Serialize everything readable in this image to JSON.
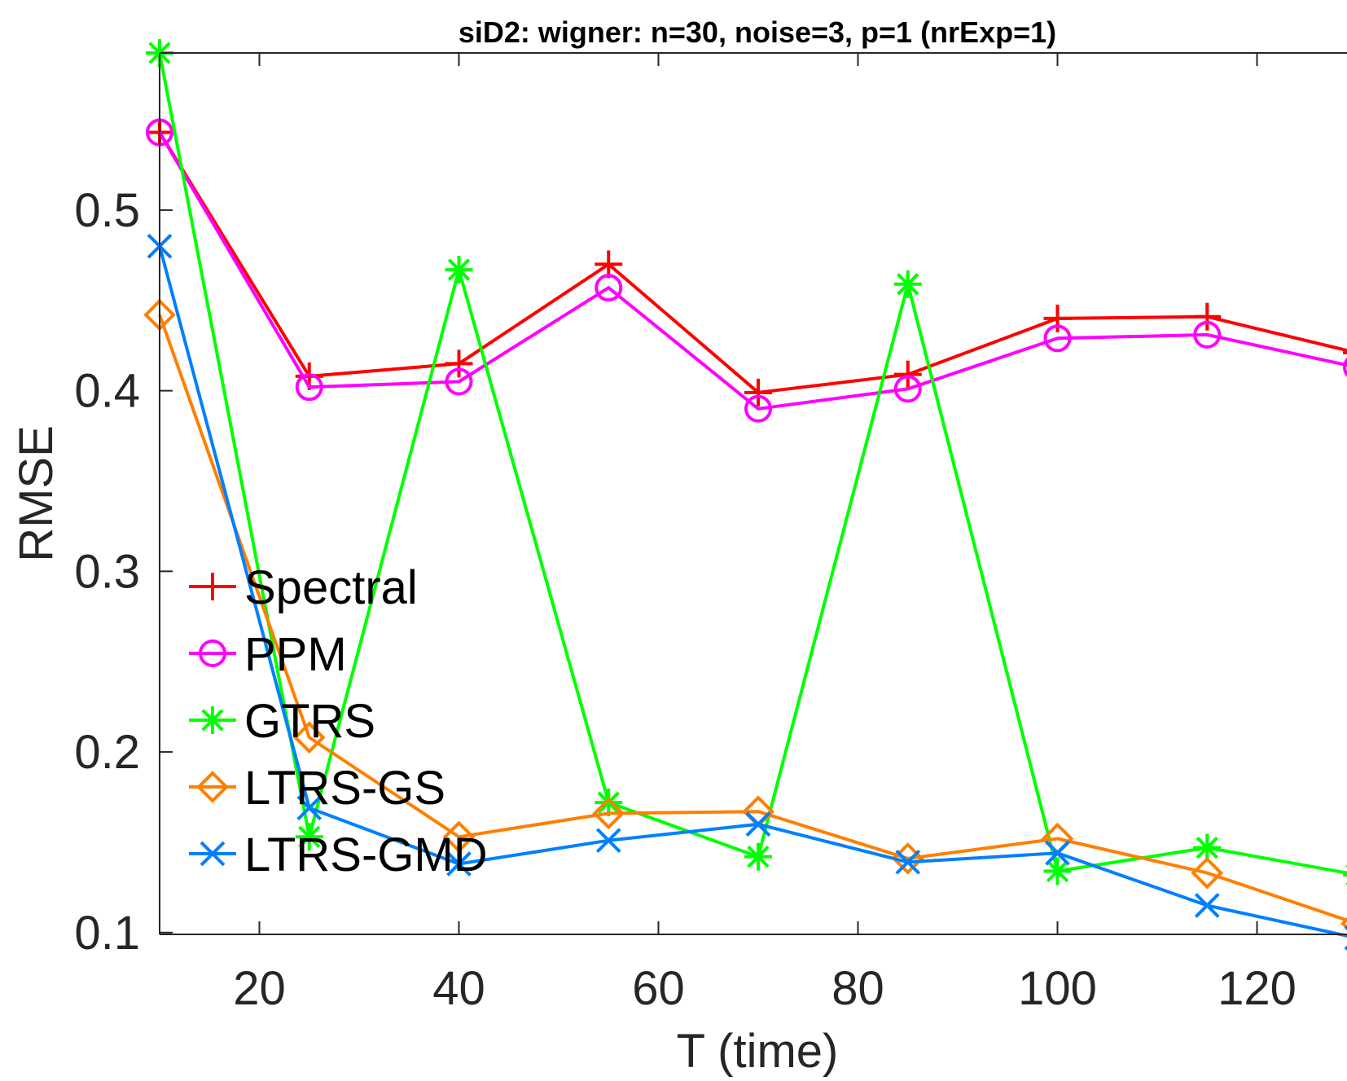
{
  "chart_data": {
    "type": "line",
    "title": "siD2: wigner: n=30, noise=3, p=1 (nrExp=1)",
    "xlabel": "T (time)",
    "ylabel": "RMSE",
    "xlim": [
      10,
      130
    ],
    "ylim": [
      0.099,
      0.587
    ],
    "xticks": [
      20,
      40,
      60,
      80,
      100,
      120
    ],
    "yticks": [
      0.1,
      0.2,
      0.3,
      0.4,
      0.5
    ],
    "xtick_labels": [
      "20",
      "40",
      "60",
      "80",
      "100",
      "120"
    ],
    "ytick_labels": [
      "0.1",
      "0.2",
      "0.3",
      "0.4",
      "0.5"
    ],
    "grid": false,
    "legend_position": "left",
    "x": [
      10,
      25,
      40,
      55,
      70,
      85,
      100,
      115,
      130
    ],
    "series": [
      {
        "name": "Spectral",
        "color": "#ff0000",
        "marker": "plus",
        "values": [
          0.543,
          0.408,
          0.415,
          0.47,
          0.399,
          0.409,
          0.44,
          0.441,
          0.421
        ]
      },
      {
        "name": "PPM",
        "color": "#ff00ff",
        "marker": "circle",
        "values": [
          0.543,
          0.402,
          0.405,
          0.457,
          0.39,
          0.401,
          0.429,
          0.431,
          0.413
        ]
      },
      {
        "name": "GTRS",
        "color": "#00ff00",
        "marker": "asterisk",
        "values": [
          0.587,
          0.153,
          0.467,
          0.172,
          0.142,
          0.459,
          0.134,
          0.147,
          0.132
        ]
      },
      {
        "name": "LTRS-GS",
        "color": "#ff7f00",
        "marker": "diamond",
        "values": [
          0.442,
          0.208,
          0.153,
          0.166,
          0.167,
          0.141,
          0.152,
          0.133,
          0.105
        ]
      },
      {
        "name": "LTRS-GMD",
        "color": "#0080ff",
        "marker": "x",
        "values": [
          0.48,
          0.169,
          0.138,
          0.151,
          0.16,
          0.139,
          0.144,
          0.115,
          0.097
        ]
      }
    ]
  }
}
